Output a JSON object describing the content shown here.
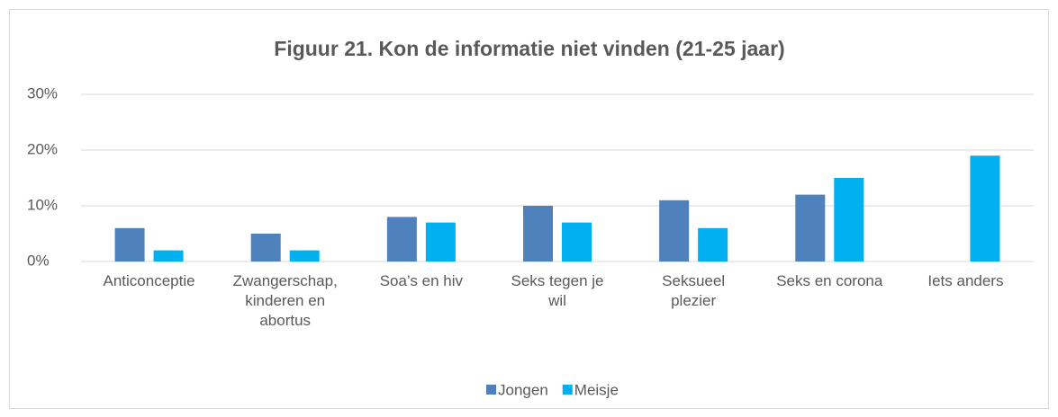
{
  "chart_data": {
    "type": "bar",
    "title": "Figuur 21. Kon de informatie niet vinden (21-25 jaar)",
    "categories": [
      "Anticonceptie",
      "Zwangerschap, kinderen en abortus",
      "Soa’s en hiv",
      "Seks tegen je wil",
      "Seksueel plezier",
      "Seks en corona",
      "Iets anders"
    ],
    "series": [
      {
        "name": "Jongen",
        "color": "#4f81bd",
        "values": [
          6,
          5,
          8,
          10,
          11,
          12,
          0
        ]
      },
      {
        "name": "Meisje",
        "color": "#00b0f0",
        "values": [
          2,
          2,
          7,
          7,
          6,
          15,
          19
        ]
      }
    ],
    "ylim": [
      0,
      30
    ],
    "yticks": [
      {
        "value": 0,
        "label": "0%"
      },
      {
        "value": 10,
        "label": "10%"
      },
      {
        "value": 20,
        "label": "20%"
      },
      {
        "value": 30,
        "label": "30%"
      }
    ],
    "grid": true,
    "legend": "bottom"
  }
}
